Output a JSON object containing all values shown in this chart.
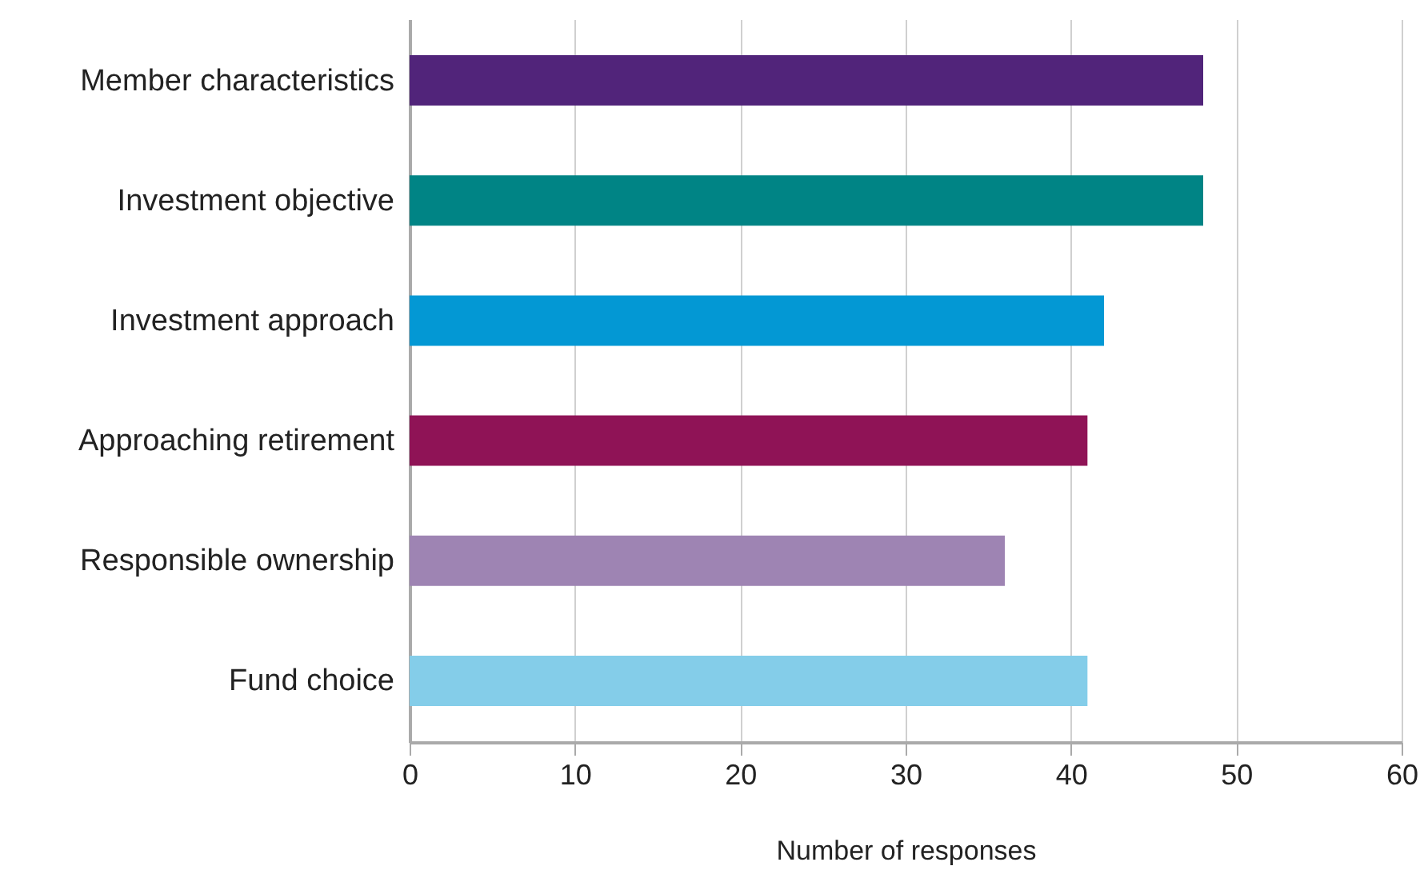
{
  "chart_data": {
    "type": "bar",
    "orientation": "horizontal",
    "xlabel": "Number of responses",
    "categories": [
      "Member characteristics",
      "Investment objective",
      "Investment approach",
      "Approaching retirement",
      "Responsible ownership",
      "Fund choice"
    ],
    "values": [
      48,
      48,
      42,
      41,
      36,
      41
    ],
    "colors": [
      "#51247a",
      "#008485",
      "#0398d4",
      "#8f1356",
      "#9e84b3",
      "#84cde9"
    ],
    "xlim": [
      0,
      60
    ],
    "xticks": [
      0,
      10,
      20,
      30,
      40,
      50,
      60
    ],
    "grid": "x"
  }
}
